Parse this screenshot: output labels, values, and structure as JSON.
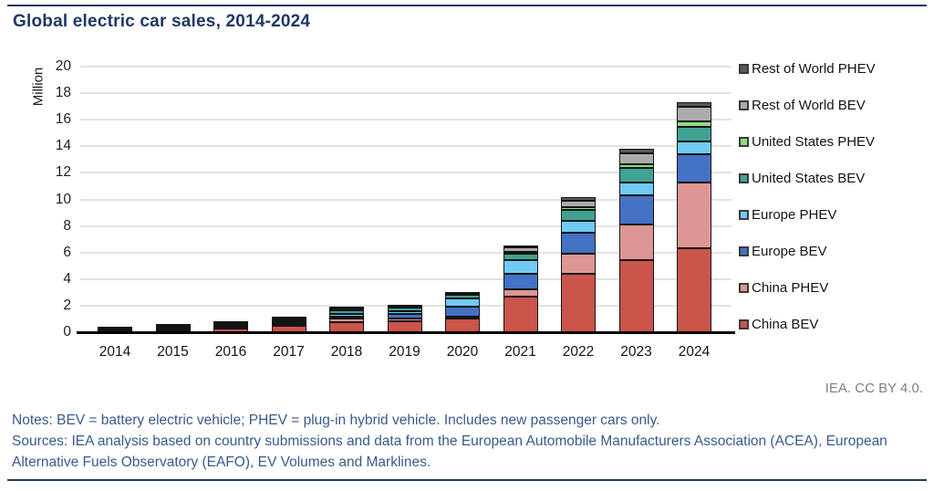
{
  "header": {
    "title": "Global electric car sales, 2014-2024"
  },
  "attribution": "IEA. CC BY 4.0.",
  "notes": {
    "notes_line": "Notes: BEV = battery electric vehicle; PHEV = plug-in hybrid vehicle. Includes new passenger cars only.",
    "sources_line": "Sources: IEA analysis based on country submissions and data from the European Automobile Manufacturers Association (ACEA), European Alternative Fuels Observatory (EAFO), EV Volumes and Marklines."
  },
  "colors": {
    "accent_navy": "#1F3864",
    "notes_text": "#3A5A8C",
    "attribution_text": "#7F7F7F",
    "gridline": "#E2E2E2",
    "axis_line": "#000000",
    "segment_border": "#141414"
  },
  "chart_data": {
    "type": "bar",
    "stacked": true,
    "title": "Global electric car sales, 2014-2024",
    "xlabel": "",
    "ylabel": "Million",
    "ylim": [
      0,
      20
    ],
    "ytick_step": 2,
    "grid": "horizontal gridlines on",
    "legend_position": "right, ordered top-to-bottom as reverse of stacking order",
    "categories": [
      "2014",
      "2015",
      "2016",
      "2017",
      "2018",
      "2019",
      "2020",
      "2021",
      "2022",
      "2023",
      "2024"
    ],
    "units": "million vehicles",
    "series": [
      {
        "name": "China BEV",
        "color": "#CB544B",
        "values": [
          0.05,
          0.15,
          0.26,
          0.47,
          0.75,
          0.85,
          1.0,
          2.7,
          4.4,
          5.4,
          6.3
        ]
      },
      {
        "name": "China PHEV",
        "color": "#DE9694",
        "values": [
          0.02,
          0.06,
          0.08,
          0.11,
          0.25,
          0.2,
          0.15,
          0.5,
          1.5,
          2.7,
          4.95
        ]
      },
      {
        "name": "Europe BEV",
        "color": "#4472C4",
        "values": [
          0.06,
          0.1,
          0.12,
          0.15,
          0.2,
          0.35,
          0.75,
          1.2,
          1.6,
          2.2,
          2.15
        ]
      },
      {
        "name": "Europe PHEV",
        "color": "#70CBF4",
        "values": [
          0.04,
          0.09,
          0.1,
          0.15,
          0.2,
          0.2,
          0.65,
          1.0,
          0.9,
          0.95,
          1.0
        ]
      },
      {
        "name": "United States BEV",
        "color": "#41A293",
        "values": [
          0.06,
          0.07,
          0.09,
          0.1,
          0.25,
          0.25,
          0.25,
          0.5,
          0.8,
          1.1,
          1.05
        ]
      },
      {
        "name": "United States PHEV",
        "color": "#8CDE7E",
        "values": [
          0.06,
          0.04,
          0.07,
          0.09,
          0.1,
          0.1,
          0.05,
          0.15,
          0.2,
          0.3,
          0.4
        ]
      },
      {
        "name": "Rest of World BEV",
        "color": "#ACACAC",
        "values": [
          0.02,
          0.03,
          0.02,
          0.09,
          0.15,
          0.1,
          0.1,
          0.35,
          0.5,
          0.8,
          1.1
        ]
      },
      {
        "name": "Rest of World PHEV",
        "color": "#595959",
        "values": [
          0.01,
          0.01,
          0.01,
          0.03,
          0.05,
          0.05,
          0.05,
          0.1,
          0.3,
          0.35,
          0.35
        ]
      }
    ],
    "totals": [
      0.32,
      0.55,
      0.75,
      1.19,
      1.95,
      2.1,
      3.0,
      6.5,
      10.2,
      13.8,
      17.3
    ]
  }
}
